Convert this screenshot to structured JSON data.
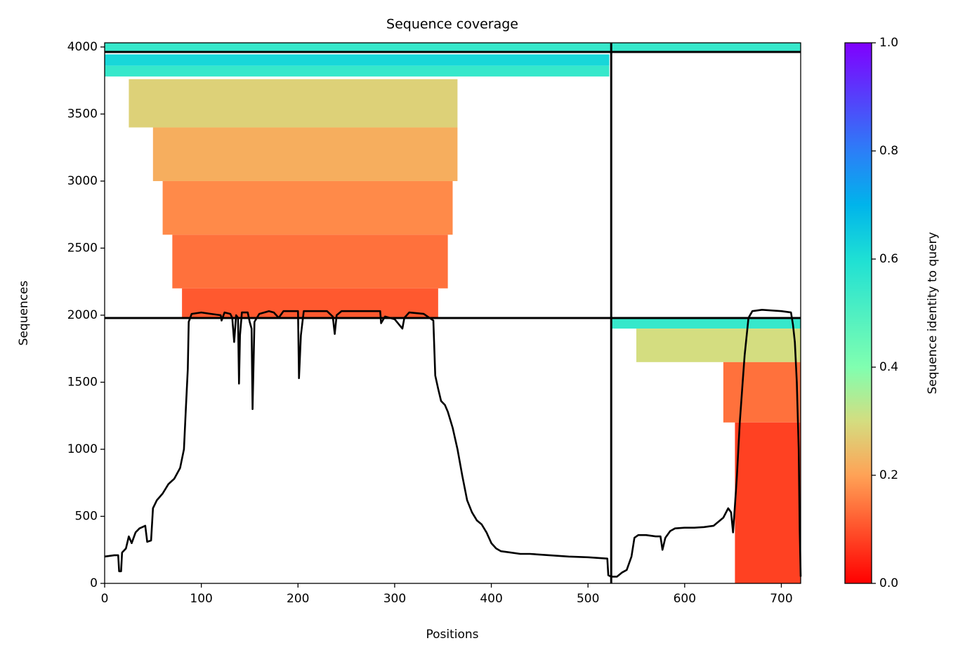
{
  "chart_data": {
    "type": "coverage",
    "title": "Sequence coverage",
    "x_label": "Positions",
    "y_label": "Sequences",
    "colorbar_label": "Sequence identity to query",
    "xlim": [
      0,
      720
    ],
    "ylim": [
      0,
      4031
    ],
    "xticks": [
      0,
      100,
      200,
      300,
      400,
      500,
      600,
      700
    ],
    "yticks": [
      0,
      500,
      1000,
      1500,
      2000,
      2500,
      3000,
      3500,
      4000
    ],
    "clim": [
      0,
      1
    ],
    "cticks": [
      {
        "value": 0,
        "label": "0.0"
      },
      0.2,
      0.4,
      0.6,
      0.8,
      {
        "value": 1,
        "label": "1.0"
      }
    ],
    "colormap": [
      [
        0,
        "#ff0000"
      ],
      [
        0.2,
        "#ffa256"
      ],
      [
        0.3,
        "#d4dd80"
      ],
      [
        0.4,
        "#80ffb0"
      ],
      [
        0.6,
        "#1ee0d4"
      ],
      [
        0.7,
        "#00b4eb"
      ],
      [
        0.8,
        "#2c7ef7"
      ],
      [
        1,
        "#8000ff"
      ]
    ],
    "line_color": "#000000",
    "chain_boundaries": {
      "x": [
        524
      ],
      "y": [
        1979,
        3963
      ]
    },
    "msa_blocks": [
      {
        "x": [
          0,
          720
        ],
        "y": [
          3963,
          4031
        ],
        "identity": 0.55
      },
      {
        "x": [
          0,
          522
        ],
        "y": [
          3860,
          3945
        ],
        "identity": 0.62
      },
      {
        "x": [
          0,
          522
        ],
        "y": [
          3780,
          3860
        ],
        "identity": 0.55
      },
      {
        "x": [
          25,
          365
        ],
        "y": [
          3400,
          3760
        ],
        "identity": 0.28
      },
      {
        "x": [
          50,
          365
        ],
        "y": [
          3000,
          3400
        ],
        "identity": 0.22
      },
      {
        "x": [
          60,
          360
        ],
        "y": [
          2600,
          3000
        ],
        "identity": 0.17
      },
      {
        "x": [
          70,
          355
        ],
        "y": [
          2200,
          2600
        ],
        "identity": 0.14
      },
      {
        "x": [
          80,
          345
        ],
        "y": [
          1979,
          2200
        ],
        "identity": 0.11
      },
      {
        "x": [
          524,
          720
        ],
        "y": [
          1900,
          1979
        ],
        "identity": 0.55
      },
      {
        "x": [
          550,
          720
        ],
        "y": [
          1650,
          1900
        ],
        "identity": 0.3
      },
      {
        "x": [
          640,
          720
        ],
        "y": [
          1200,
          1650
        ],
        "identity": 0.14
      },
      {
        "x": [
          652,
          720
        ],
        "y": [
          0,
          1200
        ],
        "identity": 0.08
      }
    ],
    "coverage": {
      "x": [
        0,
        10,
        14,
        15,
        17,
        18,
        22,
        25,
        28,
        32,
        36,
        42,
        44,
        48,
        50,
        54,
        60,
        66,
        72,
        78,
        82,
        84,
        86,
        87,
        90,
        100,
        110,
        120,
        121,
        124,
        130,
        132,
        134,
        136,
        138,
        139,
        140,
        142,
        148,
        150,
        152,
        153,
        155,
        160,
        170,
        175,
        180,
        185,
        200,
        201,
        203,
        206,
        230,
        236,
        238,
        240,
        245,
        285,
        286,
        290,
        300,
        308,
        310,
        315,
        330,
        340,
        342,
        345,
        348,
        352,
        355,
        360,
        365,
        370,
        375,
        380,
        385,
        390,
        395,
        400,
        405,
        410,
        420,
        430,
        440,
        460,
        480,
        500,
        520,
        521,
        524,
        530,
        535,
        540,
        545,
        548,
        552,
        560,
        570,
        575,
        577,
        580,
        585,
        590,
        600,
        610,
        620,
        630,
        640,
        645,
        648,
        650,
        652,
        654,
        657,
        660,
        662,
        666,
        670,
        680,
        700,
        710,
        712,
        714,
        716,
        718,
        719,
        720
      ],
      "values": [
        200,
        210,
        210,
        90,
        90,
        230,
        260,
        350,
        300,
        380,
        410,
        430,
        310,
        320,
        560,
        620,
        670,
        740,
        780,
        860,
        1000,
        1300,
        1600,
        1950,
        2010,
        2020,
        2010,
        2000,
        1960,
        2020,
        2010,
        1980,
        1800,
        2000,
        1980,
        1490,
        1850,
        2020,
        2020,
        1950,
        1900,
        1300,
        1950,
        2010,
        2030,
        2020,
        1980,
        2030,
        2030,
        1530,
        1850,
        2030,
        2030,
        1990,
        1860,
        2000,
        2030,
        2030,
        1940,
        1990,
        1970,
        1900,
        1980,
        2020,
        2010,
        1960,
        1550,
        1450,
        1360,
        1330,
        1280,
        1160,
        1000,
        800,
        620,
        530,
        470,
        440,
        380,
        300,
        260,
        240,
        230,
        220,
        220,
        210,
        200,
        195,
        185,
        60,
        50,
        50,
        80,
        100,
        200,
        340,
        360,
        360,
        350,
        350,
        250,
        340,
        390,
        410,
        415,
        415,
        420,
        430,
        490,
        560,
        530,
        380,
        580,
        800,
        1200,
        1500,
        1700,
        1980,
        2030,
        2040,
        2030,
        2020,
        1930,
        1800,
        1500,
        1000,
        400,
        50
      ]
    }
  }
}
